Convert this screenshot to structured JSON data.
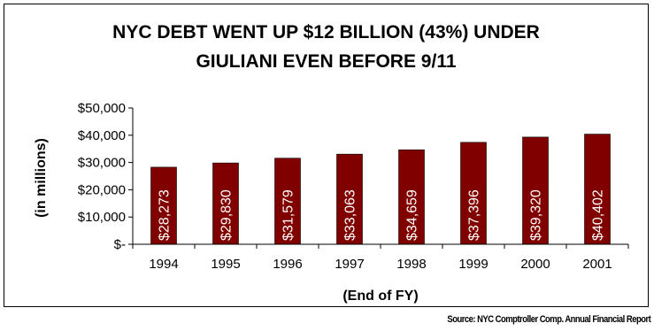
{
  "chart_data": {
    "type": "bar",
    "title_line1": "NYC  DEBT WENT UP $12 BILLION (43%) UNDER",
    "title_line2": "GIULIANI EVEN BEFORE 9/11",
    "xlabel": "(End of FY)",
    "ylabel": "(in millions)",
    "categories": [
      "1994",
      "1995",
      "1996",
      "1997",
      "1998",
      "1999",
      "2000",
      "2001"
    ],
    "values": [
      28273,
      29830,
      31579,
      33063,
      34659,
      37396,
      39320,
      40402
    ],
    "data_labels": [
      "$28,273",
      "$29,830",
      "$31,579",
      "$33,063",
      "$34,659",
      "$37,396",
      "$39,320",
      "$40,402"
    ],
    "ylim": [
      0,
      50000
    ],
    "yticks": [
      0,
      10000,
      20000,
      30000,
      40000,
      50000
    ],
    "ytick_labels": [
      "$-",
      "$10,000",
      "$20,000",
      "$30,000",
      "$40,000",
      "$50,000"
    ],
    "grid": false,
    "legend": "none",
    "bar_color": "#800000",
    "source": "Source: NYC Comptroller Comp. Annual Financial Report"
  }
}
